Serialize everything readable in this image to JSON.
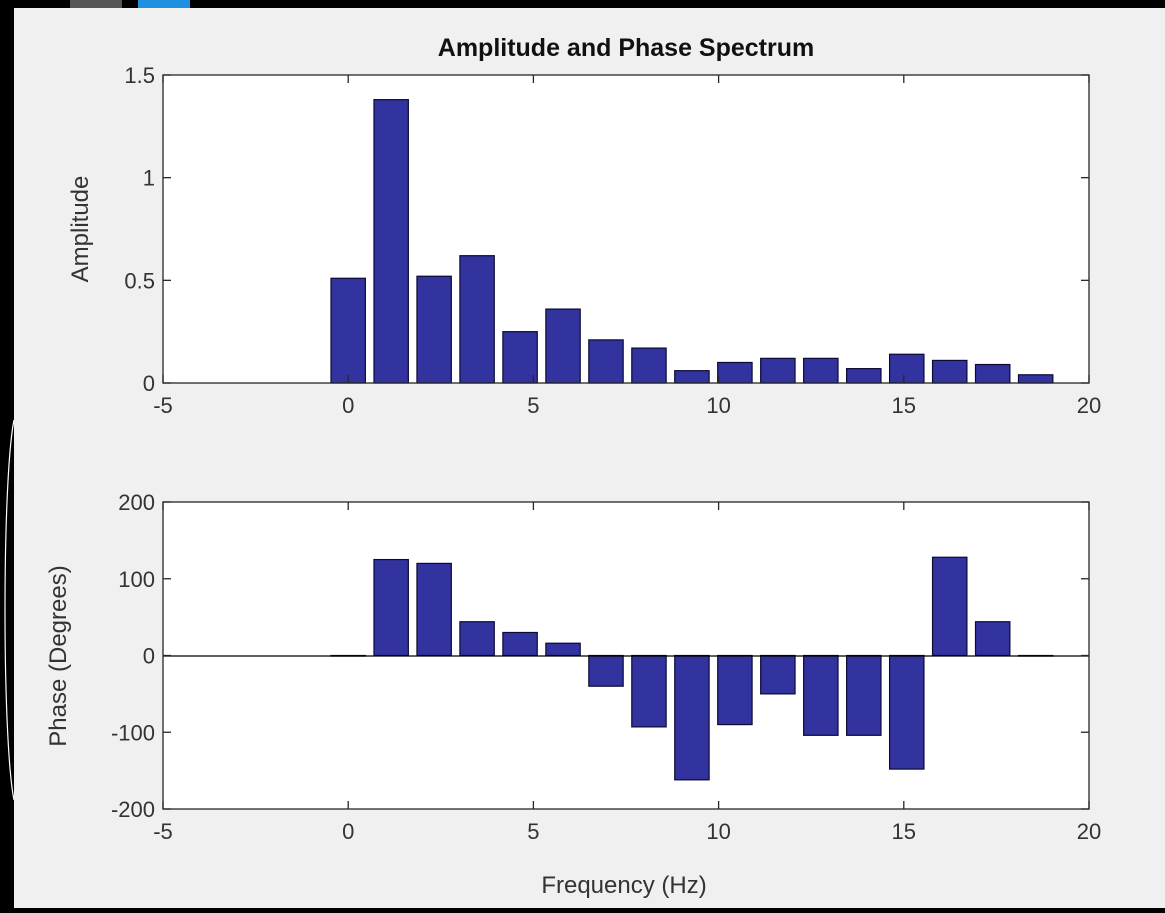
{
  "chart_data": [
    {
      "type": "bar",
      "title": "Amplitude and Phase Spectrum",
      "xlabel": "",
      "ylabel": "Amplitude",
      "xlim": [
        -5,
        20
      ],
      "ylim": [
        0,
        1.5
      ],
      "xticks": [
        "-5",
        "0",
        "5",
        "10",
        "15",
        "20"
      ],
      "yticks": [
        "0",
        "0.5",
        "1",
        "1.5"
      ],
      "grid": false,
      "bar_color": "#3333a0",
      "x": [
        0,
        1.16,
        2.32,
        3.48,
        4.64,
        5.8,
        6.96,
        8.12,
        9.28,
        10.44,
        11.6,
        12.76,
        13.92,
        15.08,
        16.24,
        17.4,
        18.56
      ],
      "values": [
        0.51,
        1.38,
        0.52,
        0.62,
        0.25,
        0.36,
        0.21,
        0.17,
        0.06,
        0.1,
        0.12,
        0.12,
        0.07,
        0.14,
        0.11,
        0.09,
        0.04
      ]
    },
    {
      "type": "bar",
      "title": "",
      "xlabel": "Frequency (Hz)",
      "ylabel": "Phase (Degrees)",
      "xlim": [
        -5,
        20
      ],
      "ylim": [
        -200,
        200
      ],
      "xticks": [
        "-5",
        "0",
        "5",
        "10",
        "15",
        "20"
      ],
      "yticks": [
        "-200",
        "-100",
        "0",
        "100",
        "200"
      ],
      "grid": false,
      "bar_color": "#3333a0",
      "x": [
        0,
        1.16,
        2.32,
        3.48,
        4.64,
        5.8,
        6.96,
        8.12,
        9.28,
        10.44,
        11.6,
        12.76,
        13.92,
        15.08,
        16.24,
        17.4,
        18.56
      ],
      "values": [
        0,
        125,
        120,
        44,
        30,
        16,
        -40,
        -93,
        -162,
        -90,
        -50,
        -104,
        -104,
        -148,
        128,
        44,
        0
      ]
    }
  ]
}
